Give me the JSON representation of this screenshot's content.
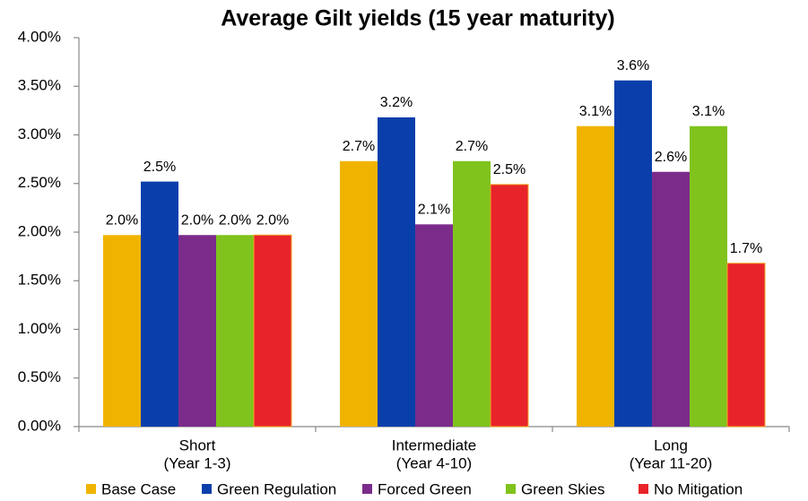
{
  "chart_data": {
    "type": "bar",
    "title": "Average Gilt yields (15 year maturity)",
    "categories": [
      [
        "Short",
        "(Year 1-3)"
      ],
      [
        "Intermediate",
        "(Year 4-10)"
      ],
      [
        "Long",
        "(Year 11-20)"
      ]
    ],
    "series": [
      {
        "name": "Base Case",
        "color": "#f0b400",
        "values": [
          1.97,
          2.73,
          3.09
        ],
        "value_labels": [
          "2.0%",
          "2.7%",
          "3.1%"
        ]
      },
      {
        "name": "Green Regulation",
        "color": "#0a3fab",
        "values": [
          2.52,
          3.18,
          3.56
        ],
        "value_labels": [
          "2.5%",
          "3.2%",
          "3.6%"
        ]
      },
      {
        "name": "Forced Green",
        "color": "#7b2c8b",
        "values": [
          1.97,
          2.08,
          2.62
        ],
        "value_labels": [
          "2.0%",
          "2.1%",
          "2.6%"
        ]
      },
      {
        "name": "Green Skies",
        "color": "#7fc31c",
        "values": [
          1.97,
          2.73,
          3.09
        ],
        "value_labels": [
          "2.0%",
          "2.7%",
          "3.1%"
        ]
      },
      {
        "name": "No Mitigation",
        "color": "#e8242a",
        "values": [
          1.97,
          2.49,
          1.68
        ],
        "value_labels": [
          "2.0%",
          "2.5%",
          "1.7%"
        ]
      }
    ],
    "ylim": [
      0,
      4
    ],
    "yticks": [
      {
        "value": 0,
        "label": "0.00%"
      },
      {
        "value": 0.5,
        "label": "0.50%"
      },
      {
        "value": 1,
        "label": "1.00%"
      },
      {
        "value": 1.5,
        "label": "1.50%"
      },
      {
        "value": 2,
        "label": "2.00%"
      },
      {
        "value": 2.5,
        "label": "2.50%"
      },
      {
        "value": 3,
        "label": "3.00%"
      },
      {
        "value": 3.5,
        "label": "3.50%"
      },
      {
        "value": 4,
        "label": "4.00%"
      }
    ],
    "legend": "bottom"
  }
}
